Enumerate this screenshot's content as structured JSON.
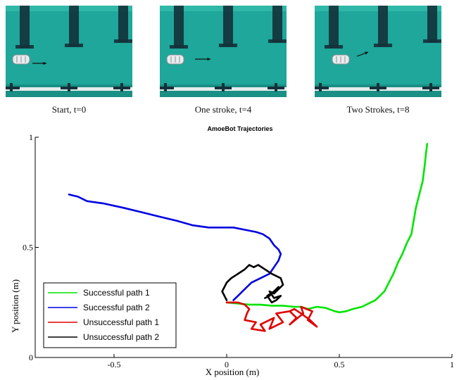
{
  "photos": [
    {
      "caption": "Start, t=0"
    },
    {
      "caption": "One stroke, t=4"
    },
    {
      "caption": "Two Strokes, t=8"
    }
  ],
  "colors": {
    "pool": "#1ea79a",
    "lane": "#13313a",
    "robot": "#e8ecef"
  },
  "chart_data": {
    "type": "line",
    "title": "AmoeBot Trajectories",
    "xlabel": "X position (m)",
    "ylabel": "Y position (m)",
    "xlim": [
      -0.85,
      1.0
    ],
    "ylim": [
      0,
      1.0
    ],
    "xticks": [
      -0.5,
      0,
      0.5,
      1
    ],
    "xtick_labels": [
      "-0.5",
      "0",
      "0.5",
      "1"
    ],
    "yticks": [
      0,
      0.5,
      1
    ],
    "ytick_labels": [
      "0",
      "0.5",
      "1"
    ],
    "grid": false,
    "legend": "bottom-left",
    "series": [
      {
        "name": "Successful path 1",
        "color": "#00e400",
        "x": [
          0.0,
          0.05,
          0.1,
          0.15,
          0.2,
          0.25,
          0.3,
          0.33,
          0.36,
          0.4,
          0.44,
          0.48,
          0.5,
          0.53,
          0.56,
          0.6,
          0.63,
          0.66,
          0.68,
          0.7,
          0.72,
          0.74,
          0.76,
          0.78,
          0.8,
          0.82,
          0.83,
          0.84,
          0.85,
          0.86,
          0.87,
          0.875,
          0.88,
          0.885,
          0.89
        ],
        "y": [
          0.25,
          0.245,
          0.24,
          0.24,
          0.235,
          0.235,
          0.23,
          0.23,
          0.22,
          0.23,
          0.225,
          0.21,
          0.205,
          0.21,
          0.22,
          0.23,
          0.245,
          0.26,
          0.28,
          0.3,
          0.34,
          0.38,
          0.43,
          0.47,
          0.52,
          0.56,
          0.62,
          0.68,
          0.72,
          0.76,
          0.8,
          0.84,
          0.88,
          0.93,
          0.97
        ]
      },
      {
        "name": "Successful path 2",
        "color": "#0000e0",
        "x": [
          -0.7,
          -0.66,
          -0.62,
          -0.55,
          -0.46,
          -0.38,
          -0.3,
          -0.22,
          -0.15,
          -0.08,
          -0.02,
          0.03,
          0.08,
          0.13,
          0.16,
          0.19,
          0.21,
          0.23,
          0.24,
          0.23,
          0.21,
          0.19,
          0.17,
          0.15,
          0.13,
          0.11,
          0.09,
          0.07,
          0.05,
          0.03
        ],
        "y": [
          0.74,
          0.73,
          0.71,
          0.7,
          0.68,
          0.66,
          0.64,
          0.62,
          0.6,
          0.59,
          0.59,
          0.59,
          0.58,
          0.57,
          0.56,
          0.54,
          0.51,
          0.49,
          0.47,
          0.44,
          0.41,
          0.38,
          0.37,
          0.36,
          0.35,
          0.34,
          0.32,
          0.3,
          0.28,
          0.26
        ]
      },
      {
        "name": "Unsuccessful path 1",
        "color": "#e00000",
        "x": [
          0.0,
          0.05,
          0.08,
          0.1,
          0.09,
          0.08,
          0.13,
          0.11,
          0.17,
          0.15,
          0.21,
          0.19,
          0.25,
          0.22,
          0.28,
          0.31,
          0.28,
          0.34,
          0.33,
          0.38,
          0.36,
          0.4,
          0.37,
          0.33,
          0.3,
          0.28
        ],
        "y": [
          0.25,
          0.25,
          0.24,
          0.22,
          0.2,
          0.17,
          0.16,
          0.13,
          0.12,
          0.15,
          0.18,
          0.13,
          0.16,
          0.2,
          0.21,
          0.18,
          0.15,
          0.2,
          0.23,
          0.21,
          0.17,
          0.14,
          0.17,
          0.2,
          0.22,
          0.21
        ]
      },
      {
        "name": "Unsuccessful path 2",
        "color": "#000000",
        "x": [
          0.0,
          -0.02,
          0.0,
          0.02,
          0.05,
          0.08,
          0.1,
          0.12,
          0.14,
          0.17,
          0.2,
          0.22,
          0.24,
          0.25,
          0.23,
          0.21,
          0.19,
          0.21,
          0.24,
          0.22,
          0.2,
          0.18,
          0.21,
          0.23,
          0.21,
          0.19,
          0.17
        ],
        "y": [
          0.26,
          0.3,
          0.34,
          0.36,
          0.38,
          0.4,
          0.42,
          0.41,
          0.42,
          0.4,
          0.38,
          0.37,
          0.36,
          0.33,
          0.31,
          0.29,
          0.3,
          0.27,
          0.28,
          0.26,
          0.25,
          0.28,
          0.3,
          0.32,
          0.3,
          0.28,
          0.27
        ]
      }
    ]
  }
}
